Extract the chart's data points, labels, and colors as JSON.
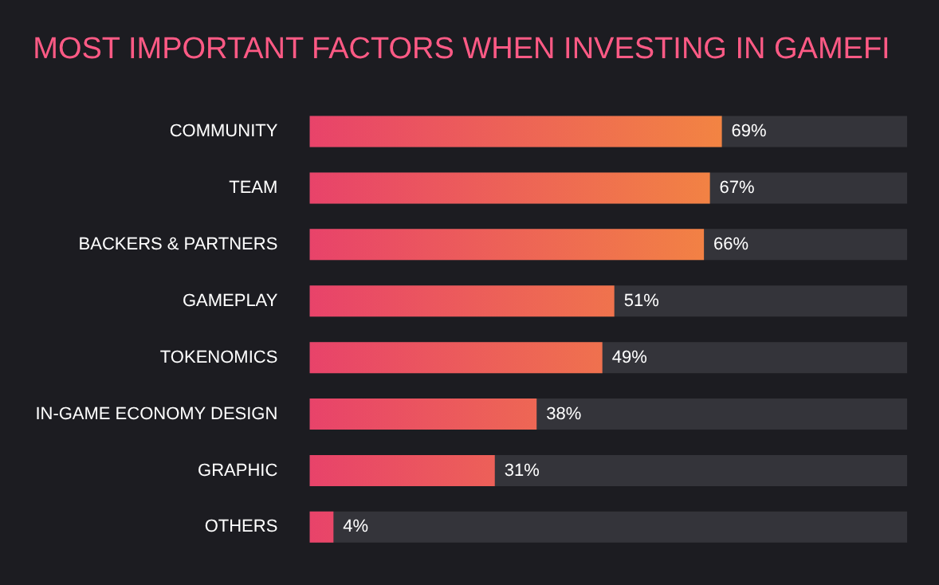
{
  "chart_data": {
    "type": "bar",
    "orientation": "horizontal",
    "title": "MOST IMPORTANT FACTORS WHEN INVESTING IN GAMEFI",
    "categories": [
      "COMMUNITY",
      "TEAM",
      "BACKERS & PARTNERS",
      "GAMEPLAY",
      "TOKENOMICS",
      "IN-GAME ECONOMY DESIGN",
      "GRAPHIC",
      "OTHERS"
    ],
    "values": [
      69,
      67,
      66,
      51,
      49,
      38,
      31,
      4
    ],
    "value_labels": [
      "69%",
      "67%",
      "66%",
      "51%",
      "49%",
      "38%",
      "31%",
      "4%"
    ],
    "color": "#e8436a",
    "xlim": [
      0,
      100
    ]
  }
}
